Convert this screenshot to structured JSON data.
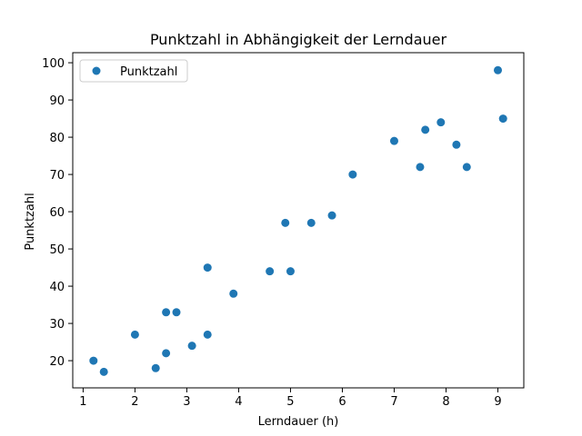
{
  "chart_data": {
    "type": "scatter",
    "title": "Punktzahl in Abhängigkeit der Lerndauer",
    "xlabel": "Lerndauer (h)",
    "ylabel": "Punktzahl",
    "xlim": [
      0.8,
      9.5
    ],
    "ylim": [
      12.7,
      102.7
    ],
    "xticks": [
      1,
      2,
      3,
      4,
      5,
      6,
      7,
      8,
      9
    ],
    "yticks": [
      20,
      30,
      40,
      50,
      60,
      70,
      80,
      90,
      100
    ],
    "grid": false,
    "legend": "top-left",
    "series": [
      {
        "name": "Punktzahl",
        "color": "#1f77b4",
        "marker": "circle",
        "x": [
          1.2,
          1.4,
          2.0,
          2.4,
          2.6,
          2.6,
          2.8,
          3.1,
          3.4,
          3.4,
          3.9,
          4.6,
          4.9,
          5.0,
          5.4,
          5.8,
          6.2,
          7.0,
          7.5,
          7.6,
          7.9,
          8.2,
          8.4,
          9.0,
          9.1
        ],
        "y": [
          20,
          17,
          27,
          18,
          33,
          22,
          33,
          24,
          45,
          27,
          38,
          44,
          57,
          44,
          57,
          59,
          70,
          79,
          72,
          82,
          84,
          78,
          72,
          98,
          85
        ]
      }
    ]
  }
}
